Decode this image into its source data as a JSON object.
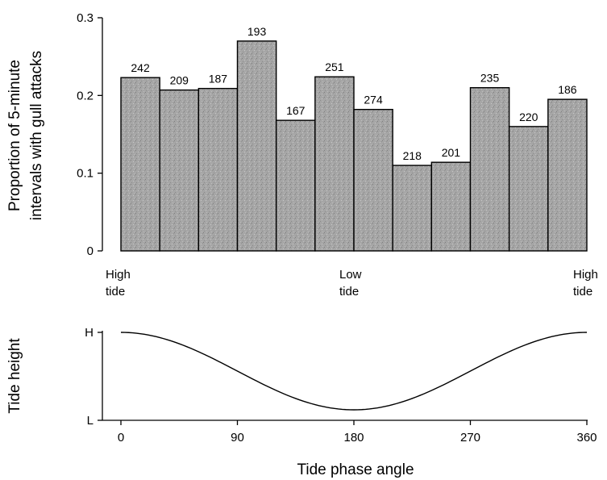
{
  "chart_data": [
    {
      "type": "bar",
      "ylabel_line1": "Proportion of 5-minute",
      "ylabel_line2": "intervals with gull attacks",
      "ylim": [
        0,
        0.3
      ],
      "yticks": [
        "0",
        "0.1",
        "0.2",
        "0.3"
      ],
      "xlim": [
        0,
        360
      ],
      "bars": [
        {
          "x_start": 0,
          "x_end": 30,
          "value": 0.223,
          "label": "242"
        },
        {
          "x_start": 30,
          "x_end": 60,
          "value": 0.207,
          "label": "209"
        },
        {
          "x_start": 60,
          "x_end": 90,
          "value": 0.209,
          "label": "187"
        },
        {
          "x_start": 90,
          "x_end": 120,
          "value": 0.27,
          "label": "193"
        },
        {
          "x_start": 120,
          "x_end": 150,
          "value": 0.168,
          "label": "167"
        },
        {
          "x_start": 150,
          "x_end": 180,
          "value": 0.224,
          "label": "251"
        },
        {
          "x_start": 180,
          "x_end": 210,
          "value": 0.182,
          "label": "274"
        },
        {
          "x_start": 210,
          "x_end": 240,
          "value": 0.11,
          "label": "218"
        },
        {
          "x_start": 240,
          "x_end": 270,
          "value": 0.114,
          "label": "201"
        },
        {
          "x_start": 270,
          "x_end": 300,
          "value": 0.21,
          "label": "235"
        },
        {
          "x_start": 300,
          "x_end": 330,
          "value": 0.16,
          "label": "220"
        },
        {
          "x_start": 330,
          "x_end": 360,
          "value": 0.195,
          "label": "186"
        }
      ],
      "annotations": [
        {
          "line1": "High",
          "line2": "tide",
          "at": 0
        },
        {
          "line1": "Low",
          "line2": "tide",
          "at": 180
        },
        {
          "line1": "High",
          "line2": "tide",
          "at": 360
        }
      ],
      "bar_color": "#a8a8a8"
    },
    {
      "type": "line",
      "ylabel": "Tide height",
      "yticks": [
        "L",
        "H"
      ],
      "xlabel": "Tide phase angle",
      "xticks": [
        0,
        90,
        180,
        270,
        360
      ],
      "xlim": [
        0,
        360
      ],
      "curve": "cosine",
      "line_color": "#000000"
    }
  ]
}
